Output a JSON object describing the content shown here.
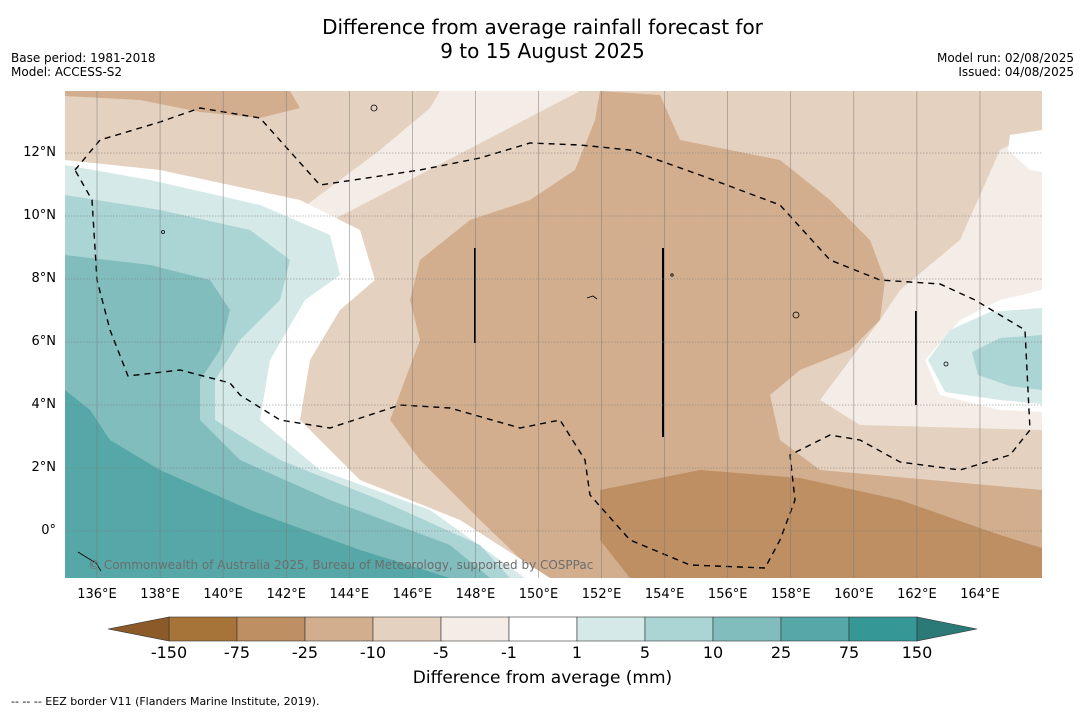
{
  "title_line1": "Difference from average rainfall forecast for",
  "title_line2": "9 to 15 August 2025",
  "base_period": "Base period: 1981-2018",
  "model": "Model: ACCESS-S2",
  "model_run": "Model run: 02/08/2025",
  "issued": "Issued: 04/08/2025",
  "copyright": "© Commonwealth of Australia 2025, Bureau of Meteorology, supported by COSPPac",
  "x_ticks": [
    "136°E",
    "138°E",
    "140°E",
    "142°E",
    "144°E",
    "146°E",
    "148°E",
    "150°E",
    "152°E",
    "154°E",
    "156°E",
    "158°E",
    "160°E",
    "162°E",
    "164°E"
  ],
  "y_ticks": [
    "12°N",
    "10°N",
    "8°N",
    "6°N",
    "4°N",
    "2°N",
    "0°"
  ],
  "colorbar": {
    "title": "Difference from average (mm)",
    "ticks": [
      "-150",
      "-75",
      "-25",
      "-10",
      "-5",
      "-1",
      "1",
      "5",
      "10",
      "25",
      "75",
      "150"
    ],
    "colors": [
      "#a67338",
      "#bd8f63",
      "#d2ae8e",
      "#e5d1bf",
      "#f4ece7",
      "#ffffff",
      "#d4e9e8",
      "#aad5d4",
      "#80bdbc",
      "#55a8a7",
      "#359896"
    ],
    "under_color": "#8c5a28",
    "over_color": "#2b7a78"
  },
  "footer": "--  --  -- EEZ border V11 (Flanders Marine Institute, 2019)."
}
